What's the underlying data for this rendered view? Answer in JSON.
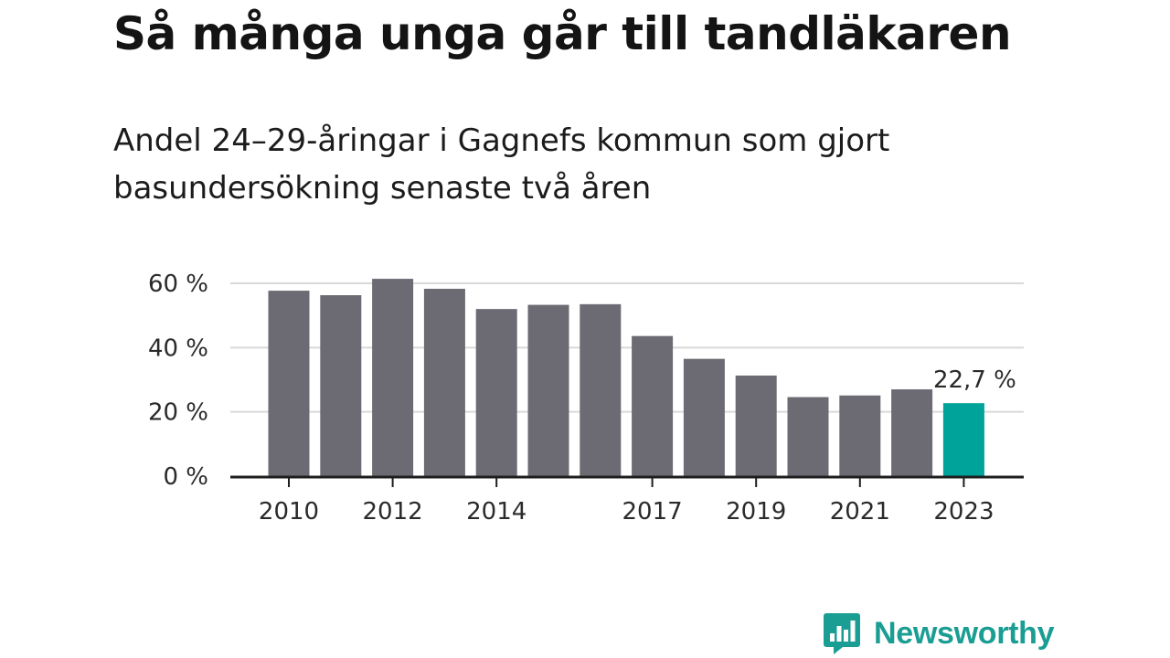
{
  "header": {
    "title": "Så många unga går till tandläkaren",
    "subtitle": "Andel 24–29-åringar i Gagnefs kommun som gjort basundersökning senaste två åren"
  },
  "chart_data": {
    "type": "bar",
    "title": "Så många unga går till tandläkaren",
    "subtitle": "Andel 24–29-åringar i Gagnefs kommun som gjort basundersökning senaste två åren",
    "categories": [
      "2010",
      "2011",
      "2012",
      "2013",
      "2014",
      "2015",
      "2016",
      "2017",
      "2018",
      "2019",
      "2020",
      "2021",
      "2022",
      "2023"
    ],
    "values": [
      57.7,
      56.3,
      61.4,
      58.3,
      52.0,
      53.3,
      53.5,
      43.6,
      36.5,
      31.3,
      24.6,
      25.1,
      27.0,
      22.7
    ],
    "x_tick_labels": [
      "2010",
      "",
      "2012",
      "",
      "2014",
      "",
      "",
      "2017",
      "",
      "2019",
      "",
      "2021",
      "",
      "2023"
    ],
    "y_ticks": [
      0,
      20,
      40,
      60
    ],
    "y_tick_labels": [
      "0 %",
      "20 %",
      "40 %",
      "60 %"
    ],
    "ylim": [
      0,
      60
    ],
    "xlabel": "",
    "ylabel": "",
    "grid": true,
    "bar_color": "#6c6b73",
    "highlight_color": "#00a399",
    "highlight_index": 13,
    "data_labels": [
      {
        "index": 13,
        "text": "22,7 %"
      }
    ]
  },
  "brand": {
    "name": "Newsworthy",
    "color": "#1a9e93",
    "icon": "newsworthy-logo-icon"
  }
}
